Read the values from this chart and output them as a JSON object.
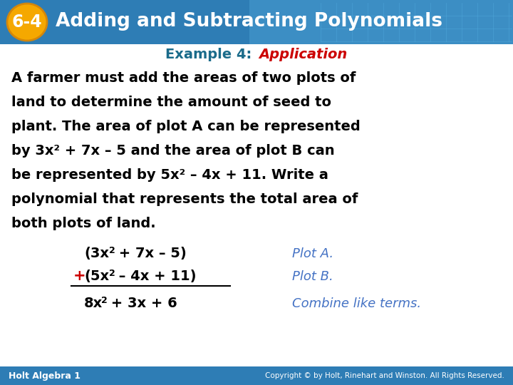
{
  "title_badge_text": "6-4",
  "title_text": "Adding and Subtracting Polynomials",
  "subtitle_normal": "Example 4: ",
  "subtitle_italic": "Application",
  "subtitle_normal_color": "#1a6b8a",
  "subtitle_italic_color": "#cc0000",
  "header_bg_left": "#2e7db5",
  "header_bg_right": "#4a9fd4",
  "badge_bg_color": "#f5a800",
  "badge_text_color": "#ffffff",
  "body_bg_color": "#ffffff",
  "footer_bg_color": "#2e7db5",
  "footer_text": "Holt Algebra 1",
  "footer_text_color": "#ffffff",
  "footer_copyright": "Copyright © by Holt, Rinehart and Winston. All Rights Reserved.",
  "footer_copyright_color": "#ffffff",
  "annot1": "Plot A.",
  "annot2": "Plot B.",
  "annot3": "Combine like terms.",
  "annot_color": "#4472c4",
  "math_color": "#000000",
  "plus_color": "#cc0000",
  "body_lines": [
    "A farmer must add the areas of two plots of",
    "land to determine the amount of seed to",
    "plant. The area of plot A can be represented",
    "by 3x² + 7x – 5 and the area of plot B can",
    "be represented by 5x² – 4x + 11. Write a",
    "polynomial that represents the total area of",
    "both plots of land."
  ]
}
